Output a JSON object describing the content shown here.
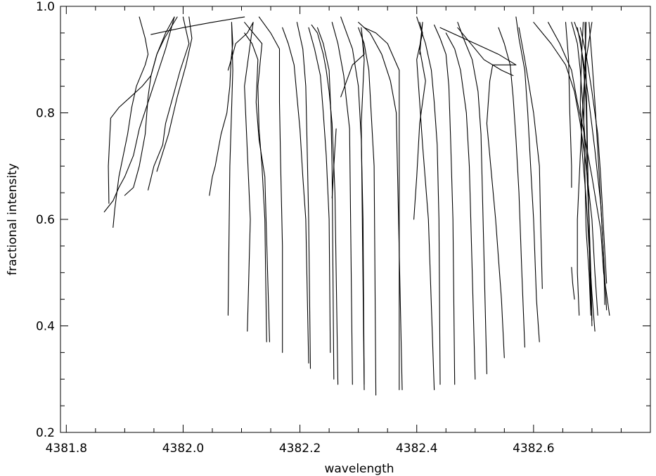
{
  "chart_data": {
    "type": "line",
    "title": "",
    "xlabel": "wavelength",
    "ylabel": "fractional intensity",
    "xlim": [
      4381.79,
      4382.8
    ],
    "ylim": [
      0.2,
      1.0
    ],
    "x_ticks": [
      {
        "value": 4381.8,
        "label": "4381.8"
      },
      {
        "value": 4382.0,
        "label": "4382.0"
      },
      {
        "value": 4382.2,
        "label": "4382.2"
      },
      {
        "value": 4382.4,
        "label": "4382.4"
      },
      {
        "value": 4382.6,
        "label": "4382.6"
      }
    ],
    "y_ticks": [
      {
        "value": 0.2,
        "label": "0.2"
      },
      {
        "value": 0.4,
        "label": "0.4"
      },
      {
        "value": 0.6,
        "label": "0.6"
      },
      {
        "value": 0.8,
        "label": "0.8"
      },
      {
        "value": 1.0,
        "label": "1.0"
      }
    ],
    "x_minor_step": 0.05,
    "y_minor_step": 0.05,
    "grid": false,
    "legend": "none",
    "line_color": "#000000",
    "series": [
      {
        "x": [
          4381.865,
          4381.88,
          4381.89,
          4381.9,
          4381.915,
          4381.925,
          4381.94,
          4381.955,
          4381.97,
          4381.985
        ],
        "y": [
          0.614,
          0.635,
          0.66,
          0.68,
          0.72,
          0.77,
          0.82,
          0.87,
          0.92,
          0.98
        ]
      },
      {
        "x": [
          4381.873,
          4381.872,
          4381.876,
          4381.89,
          4381.91,
          4381.93,
          4381.945,
          4381.955,
          4381.968,
          4381.99
        ],
        "y": [
          0.63,
          0.7,
          0.79,
          0.81,
          0.83,
          0.85,
          0.87,
          0.91,
          0.94,
          0.98
        ]
      },
      {
        "x": [
          4381.88,
          4381.883,
          4381.89,
          4381.905,
          4381.912,
          4381.92,
          4381.935,
          4381.94,
          4381.935,
          4381.925
        ],
        "y": [
          0.585,
          0.62,
          0.68,
          0.76,
          0.81,
          0.85,
          0.89,
          0.91,
          0.94,
          0.98
        ]
      },
      {
        "x": [
          4381.9,
          4381.915,
          4381.925,
          4381.935,
          4381.94,
          4381.945,
          4381.955,
          4381.97,
          4381.985
        ],
        "y": [
          0.645,
          0.66,
          0.7,
          0.76,
          0.83,
          0.87,
          0.91,
          0.95,
          0.98
        ]
      },
      {
        "x": [
          4381.94,
          4381.95,
          4381.965,
          4381.97,
          4381.985,
          4381.995,
          4382.01,
          4382.0
        ],
        "y": [
          0.655,
          0.7,
          0.74,
          0.78,
          0.84,
          0.88,
          0.93,
          0.98
        ]
      },
      {
        "x": [
          4381.955,
          4381.975,
          4381.99,
          4382.005,
          4382.015,
          4382.01
        ],
        "y": [
          0.69,
          0.76,
          0.83,
          0.89,
          0.94,
          0.98
        ]
      },
      {
        "x": [
          4381.945,
          4382.0,
          4382.05,
          4382.105
        ],
        "y": [
          0.947,
          0.96,
          0.97,
          0.98
        ]
      },
      {
        "x": [
          4382.045,
          4382.05,
          4382.055,
          4382.065,
          4382.075,
          4382.08,
          4382.082,
          4382.085,
          4382.083,
          4382.085,
          4382.08,
          4382.077
        ],
        "y": [
          0.645,
          0.68,
          0.7,
          0.76,
          0.8,
          0.85,
          0.9,
          0.93,
          0.97,
          0.88,
          0.7,
          0.42
        ]
      },
      {
        "x": [
          4382.077,
          4382.085,
          4382.09,
          4382.1,
          4382.11,
          4382.12,
          4382.105,
          4382.115,
          4382.11
        ],
        "y": [
          0.88,
          0.91,
          0.93,
          0.94,
          0.95,
          0.97,
          0.85,
          0.6,
          0.39
        ]
      },
      {
        "x": [
          4382.105,
          4382.12,
          4382.135,
          4382.128,
          4382.13,
          4382.135,
          4382.14,
          4382.143
        ],
        "y": [
          0.97,
          0.95,
          0.93,
          0.85,
          0.77,
          0.7,
          0.6,
          0.37
        ]
      },
      {
        "x": [
          4382.13,
          4382.15,
          4382.165,
          4382.165,
          4382.167,
          4382.17,
          4382.17
        ],
        "y": [
          0.98,
          0.95,
          0.92,
          0.82,
          0.7,
          0.55,
          0.35
        ]
      },
      {
        "x": [
          4382.105,
          4382.118,
          4382.128,
          4382.125,
          4382.13,
          4382.14,
          4382.148
        ],
        "y": [
          0.95,
          0.93,
          0.9,
          0.82,
          0.75,
          0.68,
          0.37
        ]
      },
      {
        "x": [
          4382.17,
          4382.18,
          4382.19,
          4382.195,
          4382.2,
          4382.205,
          4382.21,
          4382.215
        ],
        "y": [
          0.96,
          0.93,
          0.89,
          0.83,
          0.77,
          0.68,
          0.6,
          0.33
        ]
      },
      {
        "x": [
          4382.195,
          4382.205,
          4382.21,
          4382.212,
          4382.215,
          4382.218
        ],
        "y": [
          0.97,
          0.92,
          0.85,
          0.75,
          0.6,
          0.32
        ]
      },
      {
        "x": [
          4382.215,
          4382.225,
          4382.235,
          4382.24,
          4382.245,
          4382.25,
          4382.252
        ],
        "y": [
          0.96,
          0.92,
          0.87,
          0.8,
          0.72,
          0.6,
          0.35
        ]
      },
      {
        "x": [
          4382.23,
          4382.24,
          4382.25,
          4382.253,
          4382.255,
          4382.258
        ],
        "y": [
          0.96,
          0.93,
          0.88,
          0.8,
          0.7,
          0.3
        ]
      },
      {
        "x": [
          4382.22,
          4382.23,
          4382.24,
          4382.245,
          4382.25,
          4382.255,
          4382.26,
          4382.262,
          4382.265
        ],
        "y": [
          0.965,
          0.95,
          0.91,
          0.88,
          0.84,
          0.78,
          0.65,
          0.5,
          0.29
        ]
      },
      {
        "x": [
          4382.255,
          4382.265,
          4382.275,
          4382.28,
          4382.285,
          4382.29
        ],
        "y": [
          0.97,
          0.93,
          0.87,
          0.82,
          0.77,
          0.29
        ]
      },
      {
        "x": [
          4382.255,
          4382.258,
          4382.262
        ],
        "y": [
          0.64,
          0.7,
          0.77
        ]
      },
      {
        "x": [
          4382.27,
          4382.28,
          4382.29,
          4382.3,
          4382.305,
          4382.308,
          4382.31
        ],
        "y": [
          0.98,
          0.95,
          0.92,
          0.85,
          0.75,
          0.6,
          0.29
        ]
      },
      {
        "x": [
          4382.27,
          4382.28,
          4382.29,
          4382.31,
          4382.305,
          4382.31,
          4382.305,
          4382.31
        ],
        "y": [
          0.83,
          0.86,
          0.89,
          0.91,
          0.96,
          0.9,
          0.78,
          0.28
        ]
      },
      {
        "x": [
          4382.3,
          4382.32,
          4382.34,
          4382.355,
          4382.365,
          4382.375
        ],
        "y": [
          0.97,
          0.95,
          0.91,
          0.86,
          0.8,
          0.28
        ]
      },
      {
        "x": [
          4382.3,
          4382.31,
          4382.318,
          4382.322,
          4382.327,
          4382.33
        ],
        "y": [
          0.96,
          0.93,
          0.88,
          0.8,
          0.7,
          0.27
        ]
      },
      {
        "x": [
          4382.31,
          4382.33,
          4382.35,
          4382.37,
          4382.37,
          4382.37
        ],
        "y": [
          0.96,
          0.95,
          0.93,
          0.88,
          0.8,
          0.28
        ]
      },
      {
        "x": [
          4382.395,
          4382.4,
          4382.405,
          4382.415,
          4382.405,
          4382.41,
          4382.405
        ],
        "y": [
          0.6,
          0.68,
          0.78,
          0.86,
          0.92,
          0.97,
          0.91
        ]
      },
      {
        "x": [
          4382.405,
          4382.41,
          4382.4,
          4382.405,
          4382.41,
          4382.42,
          4382.43
        ],
        "y": [
          0.97,
          0.95,
          0.9,
          0.82,
          0.74,
          0.6,
          0.28
        ]
      },
      {
        "x": [
          4382.4,
          4382.415,
          4382.425,
          4382.43,
          4382.435,
          4382.438,
          4382.44
        ],
        "y": [
          0.98,
          0.93,
          0.88,
          0.82,
          0.74,
          0.6,
          0.29
        ]
      },
      {
        "x": [
          4382.43,
          4382.44,
          4382.45,
          4382.455,
          4382.458,
          4382.462,
          4382.465
        ],
        "y": [
          0.965,
          0.94,
          0.91,
          0.85,
          0.75,
          0.6,
          0.29
        ]
      },
      {
        "x": [
          4382.45,
          4382.465,
          4382.475,
          4382.485,
          4382.49,
          4382.5
        ],
        "y": [
          0.95,
          0.92,
          0.88,
          0.8,
          0.7,
          0.3
        ]
      },
      {
        "x": [
          4382.47,
          4382.48,
          4382.495,
          4382.505,
          4382.51,
          4382.52
        ],
        "y": [
          0.97,
          0.94,
          0.9,
          0.84,
          0.76,
          0.31
        ]
      },
      {
        "x": [
          4382.44,
          4382.5,
          4382.54,
          4382.57,
          4382.53,
          4382.525,
          4382.52,
          4382.535,
          4382.545,
          4382.55
        ],
        "y": [
          0.96,
          0.93,
          0.91,
          0.89,
          0.89,
          0.86,
          0.78,
          0.6,
          0.45,
          0.34
        ]
      },
      {
        "x": [
          4382.47,
          4382.515,
          4382.545,
          4382.565
        ],
        "y": [
          0.96,
          0.9,
          0.88,
          0.87
        ]
      },
      {
        "x": [
          4382.54,
          4382.55,
          4382.56,
          4382.565,
          4382.57,
          4382.575,
          4382.58,
          4382.585
        ],
        "y": [
          0.96,
          0.93,
          0.89,
          0.83,
          0.75,
          0.65,
          0.5,
          0.36
        ]
      },
      {
        "x": [
          4382.57,
          4382.575,
          4382.585,
          4382.59,
          4382.595,
          4382.6,
          4382.605,
          4382.61
        ],
        "y": [
          0.98,
          0.94,
          0.88,
          0.8,
          0.7,
          0.6,
          0.45,
          0.37
        ]
      },
      {
        "x": [
          4382.575,
          4382.585,
          4382.6,
          4382.61,
          4382.612,
          4382.615
        ],
        "y": [
          0.96,
          0.9,
          0.8,
          0.7,
          0.6,
          0.47
        ]
      },
      {
        "x": [
          4382.6,
          4382.63,
          4382.655,
          4382.67,
          4382.68,
          4382.69,
          4382.7,
          4382.705,
          4382.71
        ],
        "y": [
          0.97,
          0.93,
          0.89,
          0.84,
          0.78,
          0.7,
          0.6,
          0.5,
          0.42
        ]
      },
      {
        "x": [
          4382.625,
          4382.645,
          4382.665,
          4382.675,
          4382.685,
          4382.7,
          4382.715,
          4382.72,
          4382.73
        ],
        "y": [
          0.97,
          0.93,
          0.88,
          0.82,
          0.77,
          0.68,
          0.58,
          0.5,
          0.42
        ]
      },
      {
        "x": [
          4382.655,
          4382.66,
          4382.662,
          4382.665,
          4382.665
        ],
        "y": [
          0.97,
          0.9,
          0.8,
          0.7,
          0.66
        ]
      },
      {
        "x": [
          4382.665,
          4382.667,
          4382.67
        ],
        "y": [
          0.51,
          0.48,
          0.45
        ]
      },
      {
        "x": [
          4382.665,
          4382.675,
          4382.68,
          4382.685,
          4382.69,
          4382.695,
          4382.698,
          4382.7
        ],
        "y": [
          0.97,
          0.93,
          0.88,
          0.8,
          0.72,
          0.6,
          0.5,
          0.41
        ]
      },
      {
        "x": [
          4382.67,
          4382.68,
          4382.685,
          4382.69,
          4382.692,
          4382.695,
          4382.7
        ],
        "y": [
          0.97,
          0.94,
          0.89,
          0.82,
          0.72,
          0.6,
          0.4
        ]
      },
      {
        "x": [
          4382.685,
          4382.682,
          4382.68,
          4382.683,
          4382.69,
          4382.695,
          4382.7,
          4382.705
        ],
        "y": [
          0.97,
          0.9,
          0.82,
          0.73,
          0.64,
          0.55,
          0.46,
          0.39
        ]
      },
      {
        "x": [
          4382.69,
          4382.688,
          4382.686,
          4382.688,
          4382.69,
          4382.695,
          4382.698
        ],
        "y": [
          0.97,
          0.88,
          0.78,
          0.68,
          0.58,
          0.5,
          0.42
        ]
      },
      {
        "x": [
          4382.695,
          4382.7,
          4382.705,
          4382.71,
          4382.715,
          4382.72,
          4382.725
        ],
        "y": [
          0.97,
          0.9,
          0.82,
          0.73,
          0.63,
          0.53,
          0.43
        ]
      },
      {
        "x": [
          4382.7,
          4382.69,
          4382.685,
          4382.68,
          4382.675,
          4382.675,
          4382.678
        ],
        "y": [
          0.97,
          0.9,
          0.83,
          0.72,
          0.6,
          0.5,
          0.42
        ]
      },
      {
        "x": [
          4382.68,
          4382.69,
          4382.7,
          4382.71,
          4382.715,
          4382.72,
          4382.725
        ],
        "y": [
          0.96,
          0.91,
          0.84,
          0.76,
          0.68,
          0.58,
          0.48
        ]
      },
      {
        "x": [
          4382.675,
          4382.685,
          4382.695,
          4382.705,
          4382.715,
          4382.72,
          4382.722
        ],
        "y": [
          0.96,
          0.9,
          0.82,
          0.73,
          0.63,
          0.53,
          0.44
        ]
      },
      {
        "x": [
          4382.688,
          4382.69,
          4382.692,
          4382.694,
          4382.696,
          4382.698
        ],
        "y": [
          0.97,
          0.87,
          0.75,
          0.63,
          0.52,
          0.43
        ]
      }
    ]
  }
}
